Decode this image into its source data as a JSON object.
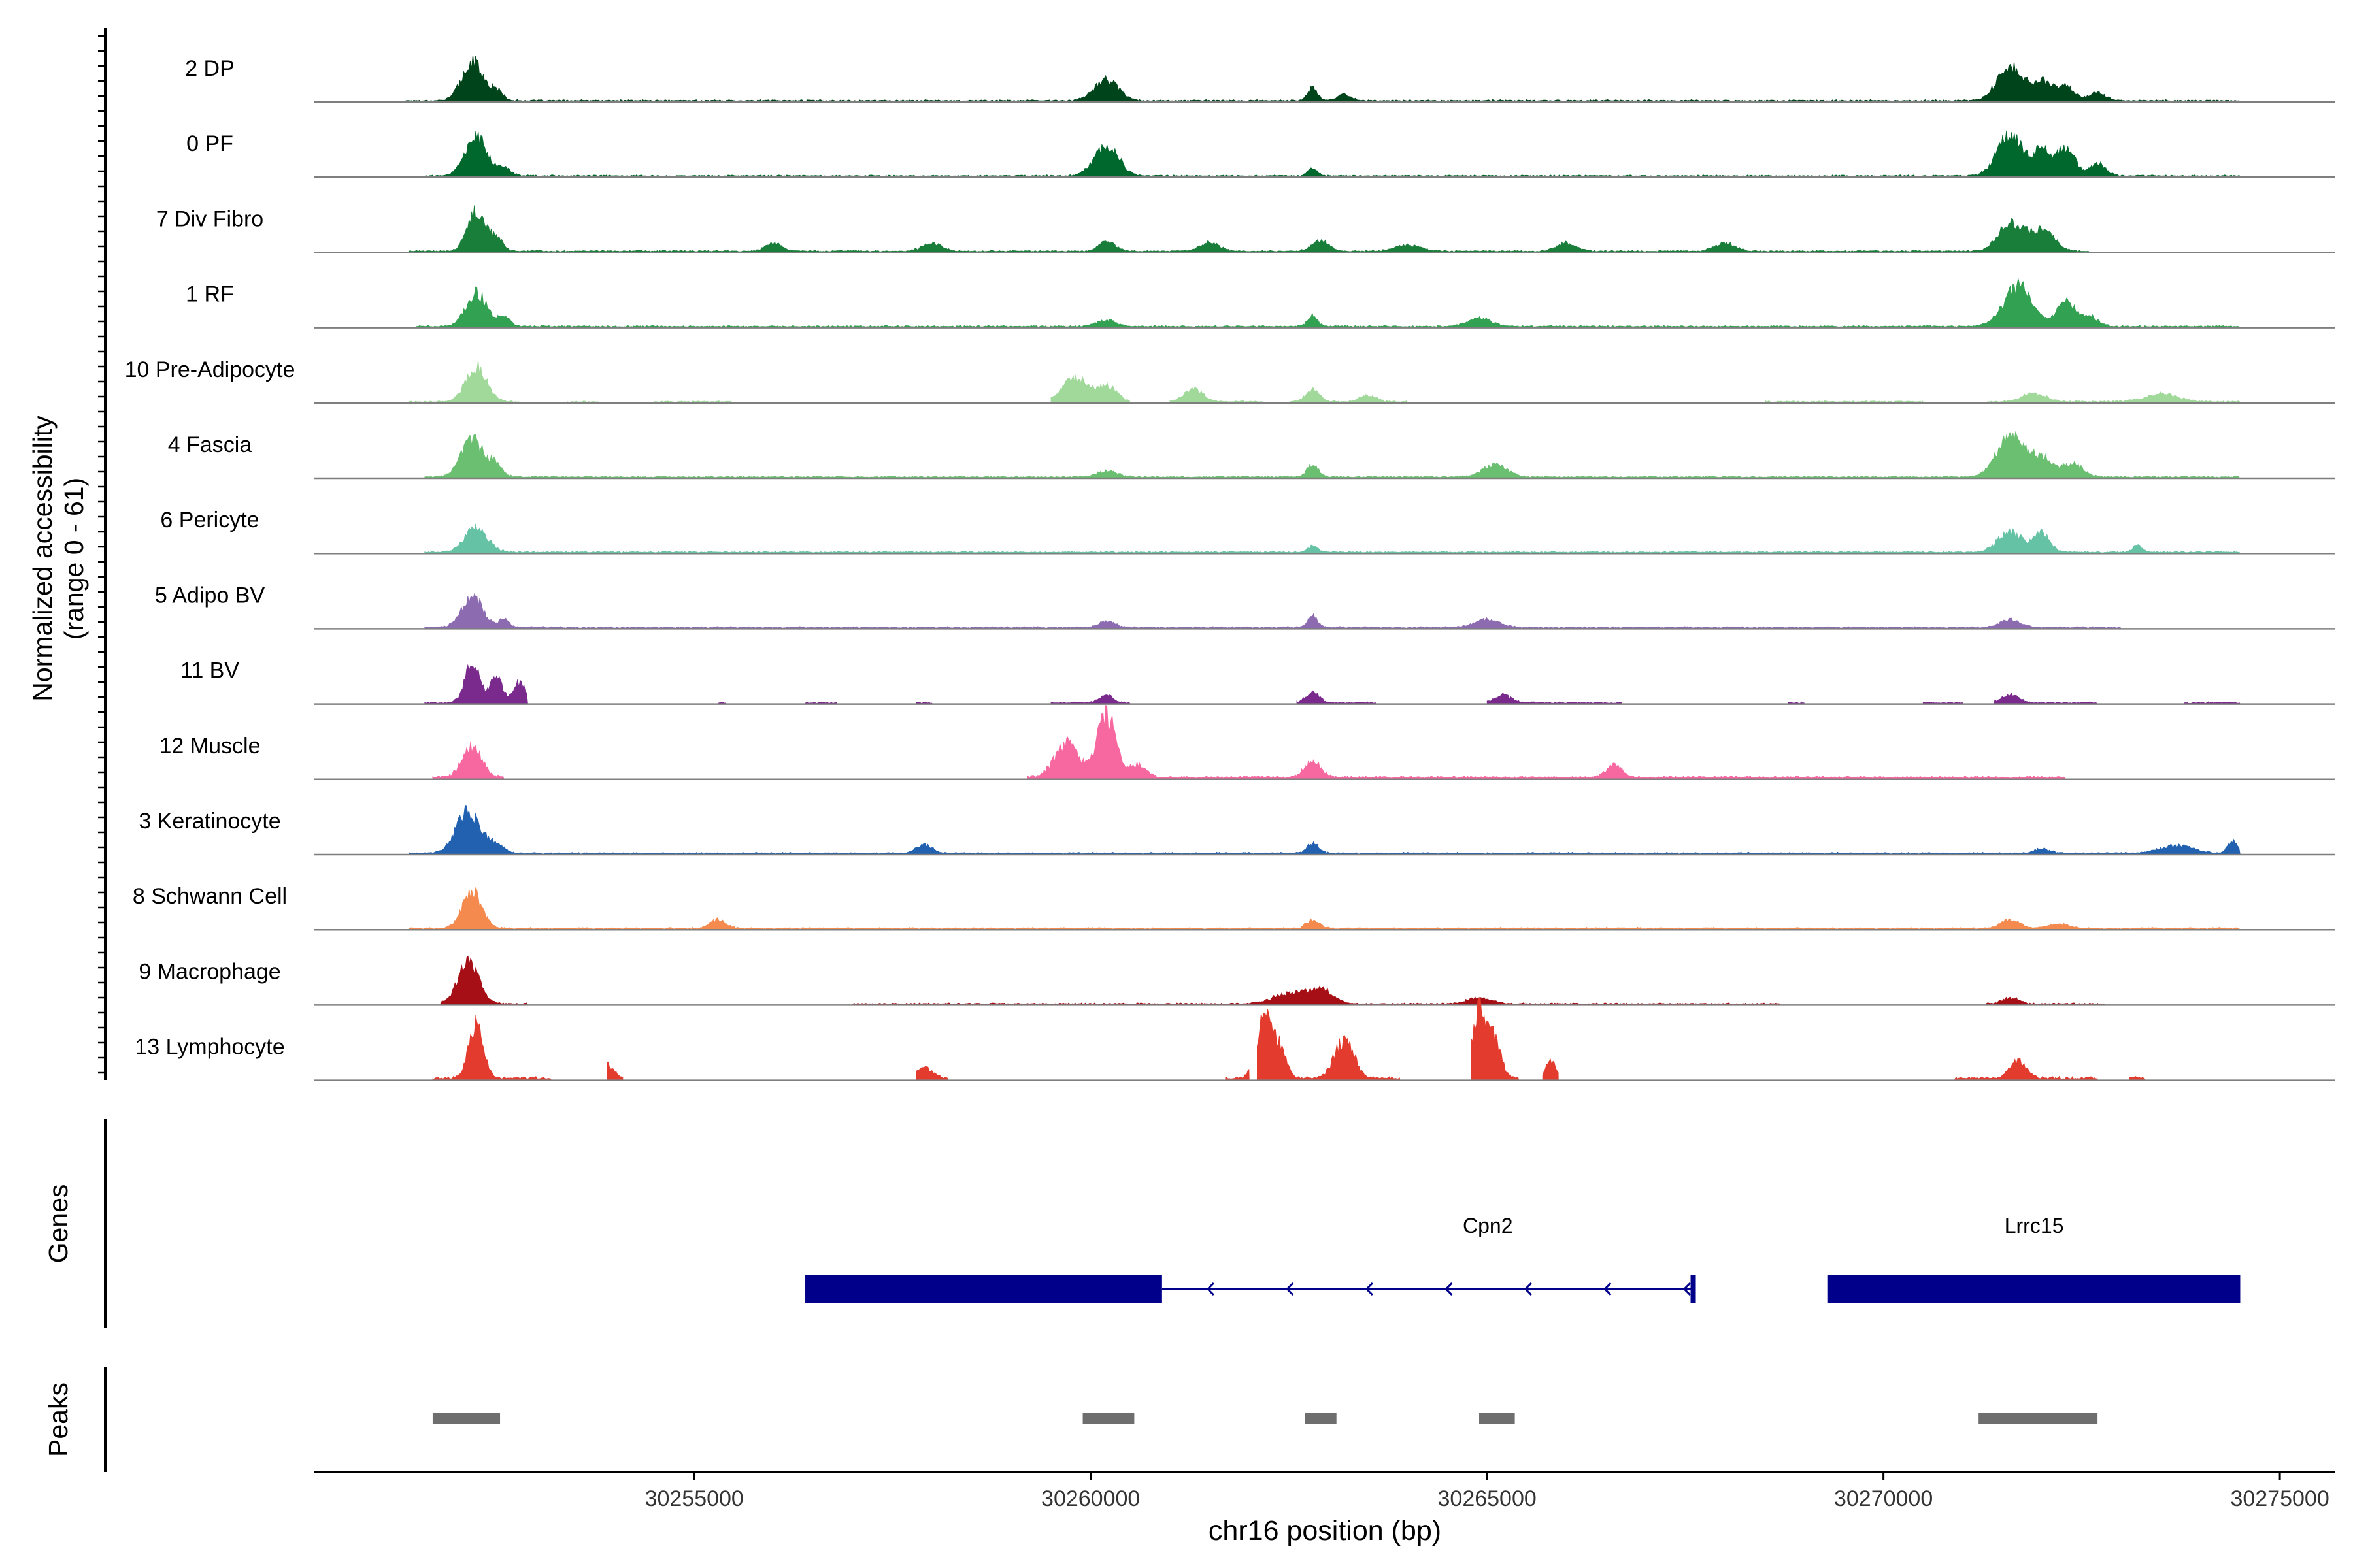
{
  "chart_data": {
    "type": "area",
    "title": "",
    "ylabel_line1": "Normalized accessibility",
    "ylabel_line2": "(range 0 - 61)",
    "xlabel": "chr16 position (bp)",
    "y_range": [
      0,
      61
    ],
    "xlim": [
      30250200,
      30275700
    ],
    "x_ticks": [
      30255000,
      30260000,
      30265000,
      30270000,
      30275000
    ],
    "x_tick_labels": [
      "30255000",
      "30260000",
      "30265000",
      "30270000",
      "30275000"
    ],
    "genes_label": "Genes",
    "peaks_label": "Peaks",
    "tracks": [
      {
        "name": "2 DP",
        "color": "#00441b",
        "scale": 0.6,
        "segments": [
          [
            30251350,
            30274500
          ]
        ],
        "peaks": [
          [
            30252200,
            0.95,
            130
          ],
          [
            30252500,
            0.25,
            80
          ],
          [
            30260200,
            0.5,
            150
          ],
          [
            30262800,
            0.3,
            60
          ],
          [
            30263200,
            0.15,
            90
          ],
          [
            30271600,
            0.85,
            160
          ],
          [
            30272000,
            0.45,
            120
          ],
          [
            30272300,
            0.35,
            110
          ],
          [
            30272700,
            0.2,
            100
          ]
        ]
      },
      {
        "name": "0 PF",
        "color": "#00682d",
        "scale": 0.6,
        "segments": [
          [
            30251600,
            30274500
          ]
        ],
        "peaks": [
          [
            30252250,
            0.95,
            140
          ],
          [
            30252600,
            0.2,
            80
          ],
          [
            30260200,
            0.75,
            150
          ],
          [
            30262800,
            0.2,
            60
          ],
          [
            30271600,
            1.0,
            160
          ],
          [
            30272000,
            0.6,
            100
          ],
          [
            30272300,
            0.7,
            110
          ],
          [
            30272700,
            0.3,
            100
          ]
        ]
      },
      {
        "name": "7 Div Fibro",
        "color": "#1a7e3b",
        "scale": 0.6,
        "segments": [
          [
            30251400,
            30272600
          ]
        ],
        "peaks": [
          [
            30252250,
            1.0,
            110
          ],
          [
            30252500,
            0.3,
            80
          ],
          [
            30256000,
            0.2,
            100
          ],
          [
            30258000,
            0.2,
            120
          ],
          [
            30260200,
            0.25,
            100
          ],
          [
            30261500,
            0.2,
            120
          ],
          [
            30262900,
            0.25,
            100
          ],
          [
            30264000,
            0.15,
            150
          ],
          [
            30266000,
            0.2,
            120
          ],
          [
            30268000,
            0.2,
            120
          ],
          [
            30271600,
            0.7,
            150
          ],
          [
            30272000,
            0.5,
            150
          ]
        ]
      },
      {
        "name": "1 RF",
        "color": "#32a151",
        "scale": 0.6,
        "segments": [
          [
            30251500,
            30274500
          ]
        ],
        "peaks": [
          [
            30252250,
            0.8,
            130
          ],
          [
            30252600,
            0.2,
            80
          ],
          [
            30260200,
            0.15,
            120
          ],
          [
            30262800,
            0.25,
            60
          ],
          [
            30264900,
            0.2,
            150
          ],
          [
            30271700,
            1.0,
            180
          ],
          [
            30272300,
            0.6,
            120
          ],
          [
            30272600,
            0.25,
            100
          ]
        ]
      },
      {
        "name": "10 Pre-Adipocyte",
        "color": "#a1d99b",
        "scale": 0.6,
        "segments": [
          [
            30251400,
            30252800
          ],
          [
            30253400,
            30253800
          ],
          [
            30254500,
            30255500
          ],
          [
            30259500,
            30260500
          ],
          [
            30261000,
            30262200
          ],
          [
            30262500,
            30264000
          ],
          [
            30268500,
            30270500
          ],
          [
            30271300,
            30274500
          ]
        ],
        "peaks": [
          [
            30252250,
            0.85,
            130
          ],
          [
            30259800,
            0.6,
            150
          ],
          [
            30260200,
            0.4,
            120
          ],
          [
            30261300,
            0.3,
            120
          ],
          [
            30262800,
            0.3,
            80
          ],
          [
            30263500,
            0.15,
            100
          ],
          [
            30271900,
            0.2,
            150
          ],
          [
            30273500,
            0.2,
            200
          ]
        ]
      },
      {
        "name": "4 Fascia",
        "color": "#6bbf71",
        "scale": 0.6,
        "segments": [
          [
            30251600,
            30274500
          ]
        ],
        "peaks": [
          [
            30252200,
            0.9,
            140
          ],
          [
            30252500,
            0.3,
            80
          ],
          [
            30260200,
            0.15,
            120
          ],
          [
            30262800,
            0.3,
            70
          ],
          [
            30265100,
            0.3,
            150
          ],
          [
            30271600,
            0.95,
            170
          ],
          [
            30272000,
            0.45,
            150
          ],
          [
            30272400,
            0.3,
            120
          ]
        ]
      },
      {
        "name": "6 Pericyte",
        "color": "#66c2a4",
        "scale": 0.6,
        "segments": [
          [
            30251600,
            30274500
          ]
        ],
        "peaks": [
          [
            30252250,
            0.6,
            140
          ],
          [
            30262800,
            0.15,
            60
          ],
          [
            30271600,
            0.5,
            150
          ],
          [
            30272000,
            0.45,
            100
          ],
          [
            30273200,
            0.15,
            60
          ]
        ]
      },
      {
        "name": "5 Adipo BV",
        "color": "#8c6bb1",
        "scale": 0.6,
        "segments": [
          [
            30251600,
            30273000
          ]
        ],
        "peaks": [
          [
            30252200,
            0.75,
            130
          ],
          [
            30252600,
            0.2,
            60
          ],
          [
            30260200,
            0.15,
            100
          ],
          [
            30262800,
            0.3,
            60
          ],
          [
            30265000,
            0.2,
            150
          ],
          [
            30271600,
            0.2,
            120
          ]
        ]
      },
      {
        "name": "11 BV",
        "color": "#7a2a8c",
        "scale": 0.6,
        "segments": [
          [
            30251600,
            30252900
          ],
          [
            30255300,
            30255400
          ],
          [
            30256400,
            30256800
          ],
          [
            30257800,
            30258000
          ],
          [
            30259500,
            30260500
          ],
          [
            30262600,
            30263600
          ],
          [
            30265000,
            30266700
          ],
          [
            30268800,
            30269000
          ],
          [
            30270500,
            30271000
          ],
          [
            30271400,
            30272700
          ],
          [
            30273800,
            30274500
          ]
        ],
        "peaks": [
          [
            30252200,
            1.0,
            90
          ],
          [
            30252500,
            0.6,
            80
          ],
          [
            30252800,
            0.5,
            80
          ],
          [
            30260200,
            0.2,
            80
          ],
          [
            30262800,
            0.25,
            80
          ],
          [
            30265200,
            0.2,
            100
          ],
          [
            30271600,
            0.2,
            100
          ]
        ]
      },
      {
        "name": "12 Muscle",
        "color": "#f768a1",
        "scale": 0.9,
        "segments": [
          [
            30251700,
            30252600
          ],
          [
            30259200,
            30272300
          ]
        ],
        "peaks": [
          [
            30252200,
            0.5,
            120
          ],
          [
            30259700,
            0.55,
            150
          ],
          [
            30260200,
            1.0,
            120
          ],
          [
            30260600,
            0.2,
            100
          ],
          [
            30262800,
            0.25,
            100
          ],
          [
            30266600,
            0.2,
            100
          ]
        ]
      },
      {
        "name": "3 Keratinocyte",
        "color": "#2161b0",
        "scale": 0.6,
        "segments": [
          [
            30251400,
            30274500
          ]
        ],
        "peaks": [
          [
            30252150,
            1.0,
            150
          ],
          [
            30252500,
            0.2,
            100
          ],
          [
            30257900,
            0.2,
            100
          ],
          [
            30262800,
            0.25,
            70
          ],
          [
            30272000,
            0.1,
            100
          ],
          [
            30273700,
            0.2,
            200
          ],
          [
            30274400,
            0.3,
            60
          ]
        ]
      },
      {
        "name": "8 Schwann Cell",
        "color": "#f58a4f",
        "scale": 0.6,
        "segments": [
          [
            30251400,
            30274500
          ]
        ],
        "peaks": [
          [
            30252200,
            0.9,
            120
          ],
          [
            30255300,
            0.2,
            100
          ],
          [
            30262800,
            0.2,
            80
          ],
          [
            30271600,
            0.2,
            120
          ],
          [
            30272200,
            0.1,
            150
          ]
        ]
      },
      {
        "name": "9 Macrophage",
        "color": "#a50f15",
        "scale": 0.6,
        "segments": [
          [
            30251800,
            30252900
          ],
          [
            30257000,
            30268700
          ],
          [
            30271300,
            30272800
          ]
        ],
        "peaks": [
          [
            30252150,
            1.0,
            130
          ],
          [
            30262500,
            0.25,
            200
          ],
          [
            30262900,
            0.35,
            150
          ],
          [
            30264900,
            0.15,
            150
          ],
          [
            30271600,
            0.15,
            100
          ]
        ]
      },
      {
        "name": "13 Lymphocyte",
        "color": "#e33b2e",
        "scale": 1.0,
        "segments": [
          [
            30251700,
            30253200
          ],
          [
            30253900,
            30254100
          ],
          [
            30257800,
            30258200
          ],
          [
            30261700,
            30262000
          ],
          [
            30262100,
            30263900
          ],
          [
            30264800,
            30265400
          ],
          [
            30265700,
            30265900
          ],
          [
            30270900,
            30272700
          ],
          [
            30273100,
            30273300
          ]
        ],
        "peaks": [
          [
            30252250,
            0.8,
            90
          ],
          [
            30253900,
            0.2,
            80
          ],
          [
            30257900,
            0.15,
            100
          ],
          [
            30262200,
            0.9,
            100
          ],
          [
            30262400,
            0.35,
            80
          ],
          [
            30263200,
            0.55,
            120
          ],
          [
            30264900,
            1.0,
            90
          ],
          [
            30265100,
            0.5,
            80
          ],
          [
            30265800,
            0.25,
            60
          ],
          [
            30271700,
            0.25,
            100
          ]
        ]
      }
    ],
    "genes": [
      {
        "name": "Cpn2",
        "start": 30256400,
        "end": 30267600,
        "thick_end": 30260900,
        "strand": "-"
      },
      {
        "name": "Lrrc15",
        "start": 30269300,
        "end": 30274500,
        "thick_end": 30274500,
        "strand": "+"
      }
    ],
    "peak_regions": [
      [
        30251700,
        30252550
      ],
      [
        30259900,
        30260550
      ],
      [
        30262700,
        30263100
      ],
      [
        30264900,
        30265350
      ],
      [
        30271200,
        30272700
      ]
    ]
  }
}
